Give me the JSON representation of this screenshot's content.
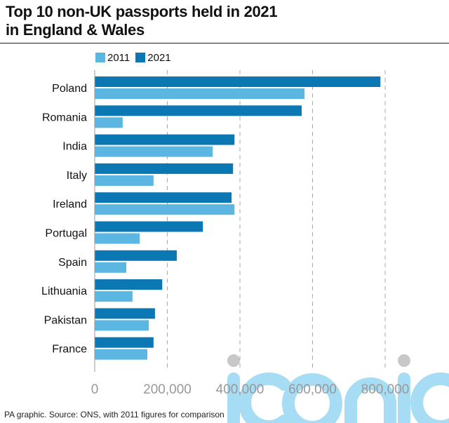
{
  "title_line1": "Top 10 non-UK passports held in 2021",
  "title_line2": "in England & Wales",
  "footer": "PA graphic. Source: ONS, with 2011 figures for comparison",
  "watermark": "iconic",
  "chart_data": {
    "type": "bar",
    "orientation": "horizontal",
    "categories": [
      "Poland",
      "Romania",
      "India",
      "Italy",
      "Ireland",
      "Portugal",
      "Spain",
      "Lithuania",
      "Pakistan",
      "France"
    ],
    "series": [
      {
        "name": "2021",
        "color": "#0b78b4",
        "values": [
          787000,
          570000,
          385000,
          381000,
          377000,
          298000,
          226000,
          186000,
          166000,
          162000
        ]
      },
      {
        "name": "2011",
        "color": "#5cb6e2",
        "values": [
          578000,
          77000,
          325000,
          162000,
          385000,
          124000,
          87000,
          104000,
          149000,
          145000
        ]
      }
    ],
    "xlim": [
      0,
      800000
    ],
    "xticks": [
      0,
      200000,
      400000,
      600000,
      800000
    ],
    "xtick_labels": [
      "0",
      "200,000",
      "400,000",
      "600,000",
      "800,000"
    ],
    "grid": "vertical dashed",
    "legend": "top-left"
  }
}
